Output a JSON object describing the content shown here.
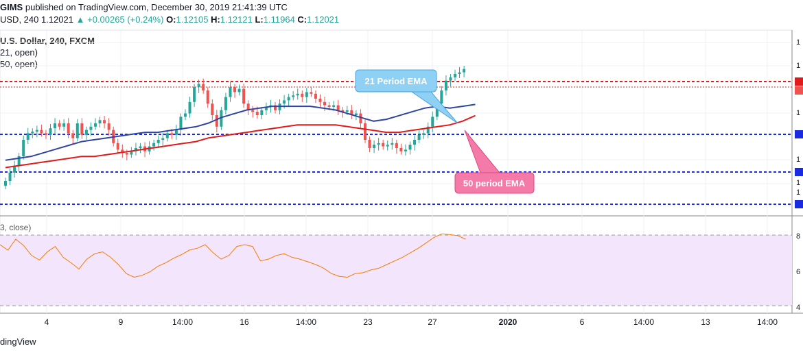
{
  "header": {
    "publisher": "GIMS",
    "published_text": "published on TradingView.com, December 30, 2019 21:41:39 UTC",
    "symbol_short": "USD, 240",
    "last_price": "1.12021",
    "change_arrow": "▲",
    "change": "+0.00265 (+0.24%)",
    "o_label": "O:",
    "o_value": "1.12105",
    "h_label": "H:",
    "h_value": "1.12121",
    "l_label": "L:",
    "l_value": "1.11964",
    "c_label": "C:",
    "c_value": "1.12021"
  },
  "legend": {
    "series_title": "U.S. Dollar, 240, FXCM",
    "ema1": "21, open)",
    "ema2": "50, open)"
  },
  "rsi": {
    "label": "3, close)"
  },
  "footer": {
    "brand": "dingView"
  },
  "annotations": {
    "ema21_label": "21 Period EMA",
    "ema50_label": "50 period EMA"
  },
  "colors": {
    "up": "#26a69a",
    "down": "#ef5350",
    "ema21": "#2f45a0",
    "ema50": "#e01b1b",
    "resistance": "#e01b1b",
    "support": "#1a2ae0",
    "rsi_line": "#f57c00",
    "rsi_band": "#f3e5fb",
    "callout_blue": "#8fd0f5",
    "callout_pink": "#f47ba8"
  },
  "chart_data": {
    "type": "candlestick",
    "x_tick_labels": [
      "4",
      "9",
      "14:00",
      "16",
      "14:00",
      "23",
      "27",
      "2020",
      "6",
      "14:00",
      "13",
      "14:00"
    ],
    "price_axis_labels": [
      "1",
      "1",
      "1",
      "1",
      "1",
      "1"
    ],
    "rsi_axis_labels": [
      "8",
      "6",
      "4"
    ],
    "rsi_levels": [
      70,
      30
    ],
    "ema21_open": [
      0.7,
      0.69,
      0.68,
      0.66,
      0.64,
      0.62,
      0.6,
      0.59,
      0.58,
      0.57,
      0.56,
      0.55,
      0.55,
      0.54,
      0.53,
      0.52,
      0.5,
      0.47,
      0.45,
      0.43,
      0.42,
      0.41,
      0.41,
      0.41,
      0.41,
      0.42,
      0.43,
      0.45,
      0.47,
      0.49,
      0.48,
      0.46,
      0.44,
      0.42,
      0.41,
      0.42,
      0.41,
      0.4
    ],
    "ema50_open": [
      0.74,
      0.73,
      0.72,
      0.71,
      0.7,
      0.69,
      0.68,
      0.68,
      0.67,
      0.66,
      0.65,
      0.64,
      0.63,
      0.62,
      0.61,
      0.6,
      0.58,
      0.57,
      0.56,
      0.55,
      0.54,
      0.53,
      0.52,
      0.51,
      0.51,
      0.51,
      0.51,
      0.52,
      0.53,
      0.54,
      0.55,
      0.55,
      0.54,
      0.53,
      0.52,
      0.51,
      0.49,
      0.46
    ],
    "resistance_levels": [
      "upper red dashed",
      "lower red dashed"
    ],
    "support_levels": [
      "blue dashed 1",
      "blue dashed 2",
      "blue dashed 3"
    ]
  }
}
